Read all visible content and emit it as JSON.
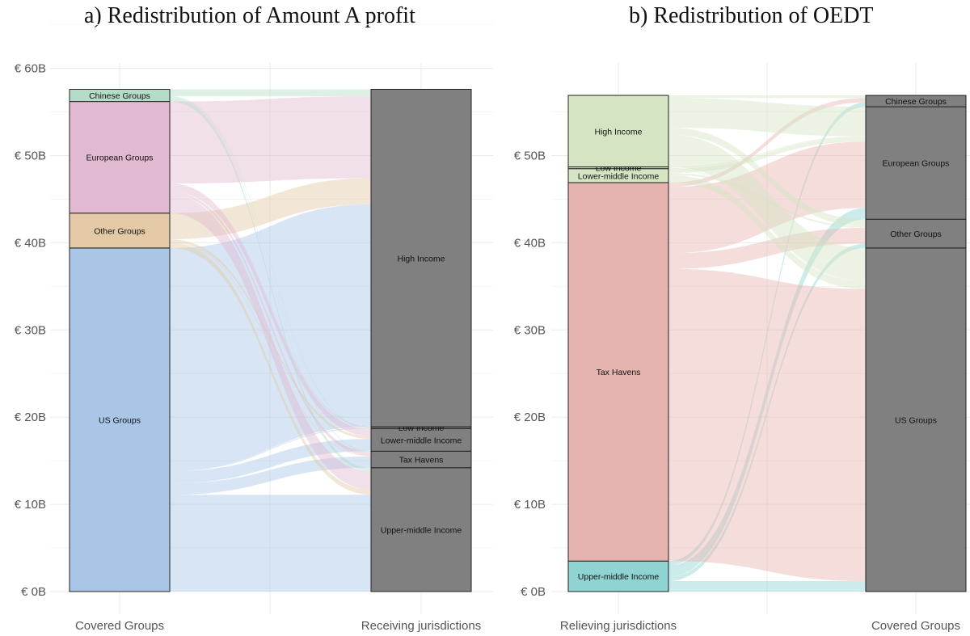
{
  "chart_data": [
    {
      "type": "sankey",
      "title": "a)    Redistribution of Amount A profit",
      "y_unit": "€ B",
      "ylim": [
        0,
        60
      ],
      "y_ticks": [
        "€ 0B",
        "€ 10B",
        "€ 20B",
        "€ 30B",
        "€ 40B",
        "€ 50B",
        "€ 60B"
      ],
      "grid": true,
      "x_categories": [
        "Covered Groups",
        "Receiving jurisdictions"
      ],
      "left_nodes": [
        {
          "label": "US Groups",
          "value": 39.4,
          "color": "#a9c6e6"
        },
        {
          "label": "Other Groups",
          "value": 4.0,
          "color": "#e3c9a6"
        },
        {
          "label": "European Groups",
          "value": 12.8,
          "color": "#e1b9d1"
        },
        {
          "label": "Chinese Groups",
          "value": 1.4,
          "color": "#b5dcc8"
        }
      ],
      "right_nodes": [
        {
          "label": "Upper-middle Income",
          "value": 14.2,
          "color": "#808080"
        },
        {
          "label": "Tax Havens",
          "value": 1.9,
          "color": "#808080"
        },
        {
          "label": "Lower-middle Income",
          "value": 2.6,
          "color": "#808080"
        },
        {
          "label": "Low Income",
          "value": 0.2,
          "color": "#808080"
        },
        {
          "label": "High Income",
          "value": 38.7,
          "color": "#808080"
        }
      ],
      "flows": [
        {
          "from": "US Groups",
          "to": "Upper-middle Income",
          "value": 11.1
        },
        {
          "from": "US Groups",
          "to": "Tax Havens",
          "value": 1.3
        },
        {
          "from": "US Groups",
          "to": "Lower-middle Income",
          "value": 1.4
        },
        {
          "from": "US Groups",
          "to": "Low Income",
          "value": 0.1
        },
        {
          "from": "US Groups",
          "to": "High Income",
          "value": 25.5
        },
        {
          "from": "Other Groups",
          "to": "Upper-middle Income",
          "value": 0.6
        },
        {
          "from": "Other Groups",
          "to": "Tax Havens",
          "value": 0.1
        },
        {
          "from": "Other Groups",
          "to": "Lower-middle Income",
          "value": 0.3
        },
        {
          "from": "Other Groups",
          "to": "High Income",
          "value": 3.0
        },
        {
          "from": "European Groups",
          "to": "Upper-middle Income",
          "value": 2.1
        },
        {
          "from": "European Groups",
          "to": "Tax Havens",
          "value": 0.4
        },
        {
          "from": "European Groups",
          "to": "Lower-middle Income",
          "value": 0.8
        },
        {
          "from": "European Groups",
          "to": "Low Income",
          "value": 0.1
        },
        {
          "from": "European Groups",
          "to": "High Income",
          "value": 9.4
        },
        {
          "from": "Chinese Groups",
          "to": "Upper-middle Income",
          "value": 0.4
        },
        {
          "from": "Chinese Groups",
          "to": "Tax Havens",
          "value": 0.1
        },
        {
          "from": "Chinese Groups",
          "to": "Lower-middle Income",
          "value": 0.1
        },
        {
          "from": "Chinese Groups",
          "to": "High Income",
          "value": 0.8
        }
      ]
    },
    {
      "type": "sankey",
      "title": "b)    Redistribution of OEDT",
      "y_unit": "€ B",
      "ylim": [
        0,
        57
      ],
      "y_ticks": [
        "€ 0B",
        "€ 10B",
        "€ 20B",
        "€ 30B",
        "€ 40B",
        "€ 50B"
      ],
      "grid": true,
      "x_categories": [
        "Relieving jurisdictions",
        "Covered Groups"
      ],
      "left_nodes": [
        {
          "label": "Upper-middle Income",
          "value": 3.5,
          "color": "#8fd3d2"
        },
        {
          "label": "Tax Havens",
          "value": 43.4,
          "color": "#e6b4b0"
        },
        {
          "label": "Lower-middle Income",
          "value": 1.6,
          "color": "#d5e5c3"
        },
        {
          "label": "Low Income",
          "value": 0.2,
          "color": "#d5e5c3"
        },
        {
          "label": "High Income",
          "value": 8.2,
          "color": "#d5e5c3"
        }
      ],
      "right_nodes": [
        {
          "label": "US Groups",
          "value": 39.4,
          "color": "#808080"
        },
        {
          "label": "Other Groups",
          "value": 3.3,
          "color": "#808080"
        },
        {
          "label": "European Groups",
          "value": 12.9,
          "color": "#808080"
        },
        {
          "label": "Chinese Groups",
          "value": 1.3,
          "color": "#808080"
        }
      ],
      "flows": [
        {
          "from": "Upper-middle Income",
          "to": "US Groups",
          "value": 1.2
        },
        {
          "from": "Upper-middle Income",
          "to": "Other Groups",
          "value": 0.5
        },
        {
          "from": "Upper-middle Income",
          "to": "European Groups",
          "value": 1.3
        },
        {
          "from": "Upper-middle Income",
          "to": "Chinese Groups",
          "value": 0.5
        },
        {
          "from": "Tax Havens",
          "to": "US Groups",
          "value": 33.5
        },
        {
          "from": "Tax Havens",
          "to": "Other Groups",
          "value": 1.8
        },
        {
          "from": "Tax Havens",
          "to": "European Groups",
          "value": 7.6
        },
        {
          "from": "Tax Havens",
          "to": "Chinese Groups",
          "value": 0.5
        },
        {
          "from": "Lower-middle Income",
          "to": "US Groups",
          "value": 0.9
        },
        {
          "from": "Lower-middle Income",
          "to": "Other Groups",
          "value": 0.2
        },
        {
          "from": "Lower-middle Income",
          "to": "European Groups",
          "value": 0.5
        },
        {
          "from": "Low Income",
          "to": "US Groups",
          "value": 0.1
        },
        {
          "from": "Low Income",
          "to": "European Groups",
          "value": 0.1
        },
        {
          "from": "High Income",
          "to": "US Groups",
          "value": 3.7
        },
        {
          "from": "High Income",
          "to": "Other Groups",
          "value": 0.8
        },
        {
          "from": "High Income",
          "to": "European Groups",
          "value": 3.4
        },
        {
          "from": "High Income",
          "to": "Chinese Groups",
          "value": 0.3
        }
      ]
    }
  ]
}
